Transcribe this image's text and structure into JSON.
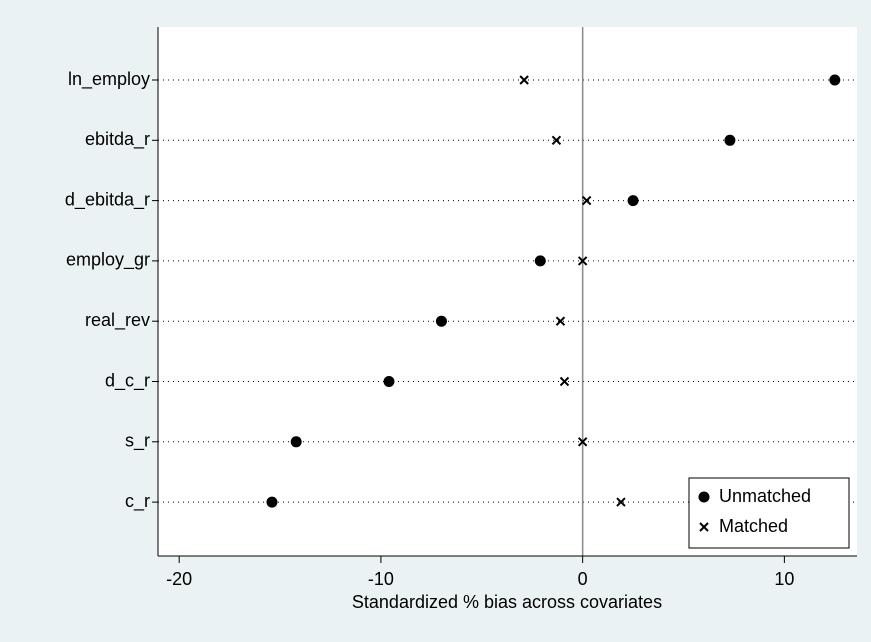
{
  "chart_data": {
    "type": "dot",
    "x_label": "Standardized % bias across covariates",
    "categories": [
      "ln_employ",
      "ebitda_r",
      "d_ebitda_r",
      "employ_gr",
      "real_rev",
      "d_c_r",
      "s_r",
      "c_r"
    ],
    "series": [
      {
        "name": "Unmatched",
        "color": "#000000",
        "marker": "circle",
        "values": [
          12.5,
          7.3,
          2.5,
          -2.1,
          -7.0,
          -9.6,
          -14.2,
          -15.4
        ]
      },
      {
        "name": "Matched",
        "color": "#000000",
        "marker": "x",
        "values": [
          -2.9,
          -1.3,
          0.2,
          0.0,
          -1.1,
          -0.9,
          0.0,
          1.9
        ]
      }
    ],
    "xlim": [
      -21.05,
      13.6
    ],
    "xticks": [
      -20,
      -10,
      0,
      10
    ],
    "xline": 0,
    "grid": true,
    "legend": "bottom-right"
  }
}
